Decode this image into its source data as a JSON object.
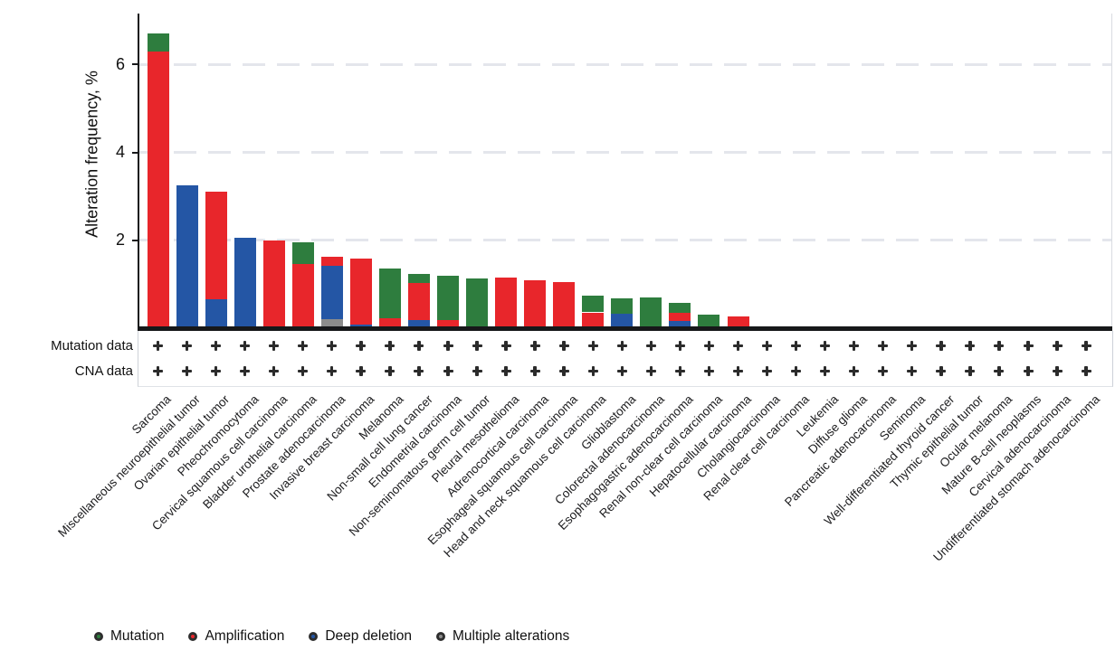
{
  "chart_data": {
    "type": "bar",
    "stacked": true,
    "title": "",
    "ylabel": "Alteration frequency, %",
    "ylim": [
      0,
      7
    ],
    "grid": "horizontal-dashed",
    "yticks": [
      {
        "value": 2,
        "label": "2"
      },
      {
        "value": 4,
        "label": "4"
      },
      {
        "value": 6,
        "label": "6"
      }
    ],
    "categories": [
      "Sarcoma",
      "Miscellaneous neuroepithelial tumor",
      "Ovarian epithelial tumor",
      "Pheochromocytoma",
      "Cervical squamous cell carcinoma",
      "Bladder urothelial carcinoma",
      "Prostate adenocarcinoma",
      "Invasive breast carcinoma",
      "Melanoma",
      "Non-small cell lung cancer",
      "Endometrial carcinoma",
      "Non-seminomatous germ cell tumor",
      "Pleural mesothelioma",
      "Adrenocortical carcinoma",
      "Esophageal squamous cell carcinoma",
      "Head and neck squamous cell carcinoma",
      "Glioblastoma",
      "Colorectal adenocarcinoma",
      "Esophagogastric adenocarcinoma",
      "Renal non-clear cell carcinoma",
      "Hepatocellular carcinoma",
      "Cholangiocarcinoma",
      "Renal clear cell carcinoma",
      "Leukemia",
      "Diffuse glioma",
      "Pancreatic adenocarcinoma",
      "Seminoma",
      "Well-differentiated thyroid cancer",
      "Thymic epithelial tumor",
      "Ocular melanoma",
      "Mature B-cell neoplasms",
      "Cervical adenocarcinoma",
      "Undifferentiated stomach adenocarcinoma"
    ],
    "series": [
      {
        "name": "Multiple alterations",
        "color": "#8c8c8c",
        "values": [
          0,
          0,
          0,
          0,
          0,
          0,
          0.2,
          0,
          0,
          0,
          0,
          0,
          0,
          0,
          0,
          0,
          0,
          0,
          0,
          0,
          0,
          0,
          0,
          0,
          0,
          0,
          0,
          0,
          0,
          0,
          0,
          0,
          0
        ]
      },
      {
        "name": "Deep deletion",
        "color": "#2456a5",
        "values": [
          0,
          3.25,
          0.65,
          2.05,
          0,
          0,
          1.22,
          0.08,
          0,
          0.19,
          0,
          0,
          0,
          0,
          0,
          0,
          0.32,
          0,
          0.16,
          0,
          0,
          0,
          0,
          0,
          0,
          0,
          0,
          0,
          0,
          0,
          0,
          0,
          0
        ]
      },
      {
        "name": "Amplification",
        "color": "#e8262b",
        "values": [
          6.3,
          0,
          2.45,
          0,
          2.0,
          1.46,
          0.2,
          1.5,
          0.23,
          0.83,
          0.19,
          0,
          1.15,
          1.1,
          1.05,
          0.36,
          0,
          0,
          0.2,
          0,
          0.26,
          0,
          0,
          0,
          0,
          0,
          0,
          0,
          0,
          0,
          0,
          0,
          0
        ]
      },
      {
        "name": "Mutation",
        "color": "#2e7d3e",
        "values": [
          0.4,
          0,
          0,
          0,
          0,
          0.5,
          0,
          0,
          1.13,
          0.22,
          1.01,
          1.13,
          0,
          0,
          0,
          0.38,
          0.35,
          0.69,
          0.21,
          0.3,
          0,
          0,
          0,
          0,
          0,
          0,
          0,
          0,
          0,
          0,
          0,
          0,
          0
        ]
      }
    ],
    "tracks": [
      {
        "label": "Mutation data",
        "values": [
          "+",
          "+",
          "+",
          "+",
          "+",
          "+",
          "+",
          "+",
          "+",
          "+",
          "+",
          "+",
          "+",
          "+",
          "+",
          "+",
          "+",
          "+",
          "+",
          "+",
          "+",
          "+",
          "+",
          "+",
          "+",
          "+",
          "+",
          "+",
          "+",
          "+",
          "+",
          "+",
          "+"
        ]
      },
      {
        "label": "CNA data",
        "values": [
          "+",
          "+",
          "+",
          "+",
          "+",
          "+",
          "+",
          "+",
          "+",
          "+",
          "+",
          "+",
          "+",
          "+",
          "+",
          "+",
          "+",
          "+",
          "+",
          "+",
          "+",
          "+",
          "+",
          "+",
          "+",
          "+",
          "+",
          "+",
          "+",
          "+",
          "+",
          "+",
          "+"
        ]
      }
    ],
    "legend_position": "bottom-left"
  },
  "legend": {
    "items": [
      {
        "label": "Mutation",
        "color": "#2e7d3e"
      },
      {
        "label": "Amplification",
        "color": "#e8262b"
      },
      {
        "label": "Deep deletion",
        "color": "#2456a5"
      },
      {
        "label": "Multiple alterations",
        "color": "#8c8c8c"
      }
    ]
  },
  "colors": {
    "axis": "#17181a",
    "grid": "#e4e6ec",
    "plus": "#2b2b2b",
    "track_border": "#cdd1d8"
  }
}
